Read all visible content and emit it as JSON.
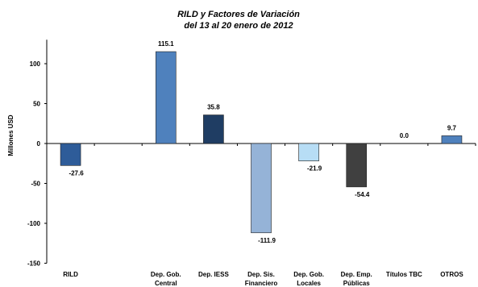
{
  "chart_data": {
    "type": "bar",
    "title": "RILD y Factores de Variación",
    "subtitle": "del 13 al 20 enero de 2012",
    "ylabel": "Millones USD",
    "xlabel": "",
    "ylim": [
      -150,
      130
    ],
    "yticks": [
      -150,
      -100,
      -50,
      0,
      50,
      100
    ],
    "grid": false,
    "legend": "none",
    "categories": [
      [
        "RILD"
      ],
      [
        ""
      ],
      [
        "Dep. Gob.",
        "Central"
      ],
      [
        "Dep. IESS"
      ],
      [
        "Dep. Sis.",
        "Financiero"
      ],
      [
        "Dep. Gob.",
        "Locales"
      ],
      [
        "Dep. Emp.",
        "Públicas"
      ],
      [
        "Títulos TBC"
      ],
      [
        "OTROS"
      ]
    ],
    "values": [
      -27.6,
      null,
      115.1,
      35.8,
      -111.9,
      -21.9,
      -54.4,
      0.0,
      9.7
    ],
    "value_labels": [
      "-27.6",
      "",
      "115.1",
      "35.8",
      "-111.9",
      "-21.9",
      "-54.4",
      "0.0",
      "9.7"
    ],
    "colors": [
      "#2E5C99",
      "#ffffff",
      "#4F81BD",
      "#1F3D63",
      "#95B3D7",
      "#B7DDF5",
      "#404040",
      "#4F81BD",
      "#4F81BD"
    ]
  }
}
